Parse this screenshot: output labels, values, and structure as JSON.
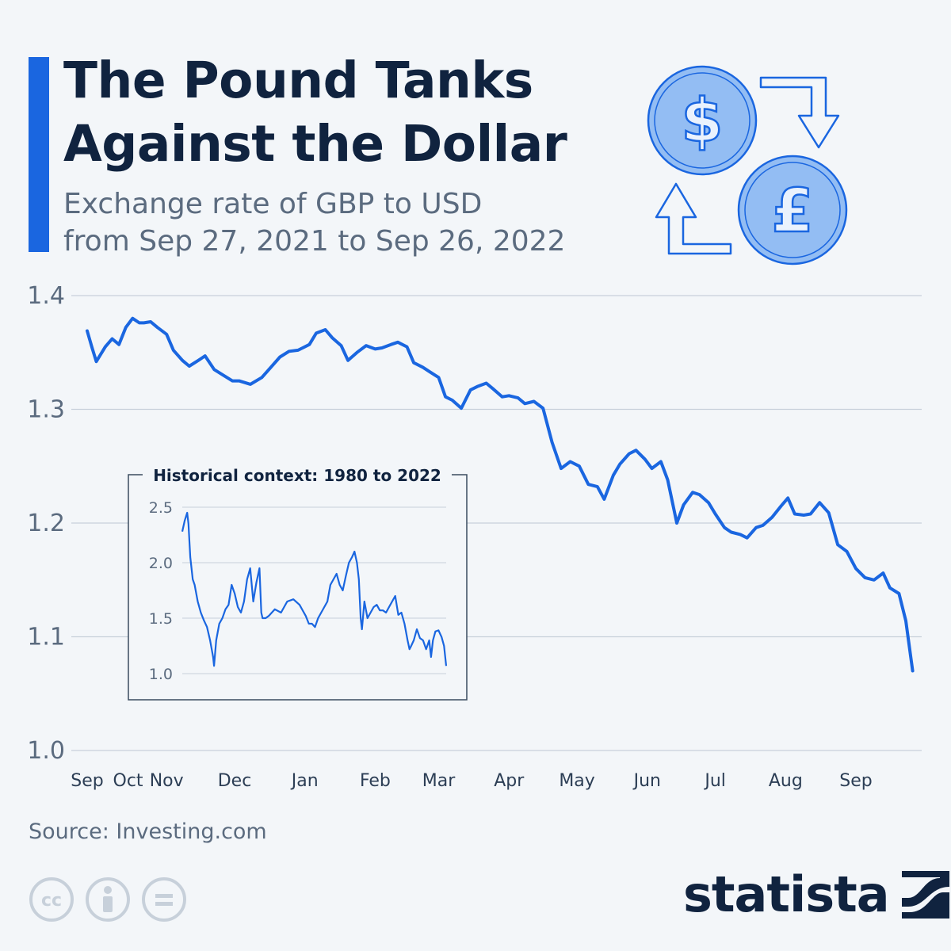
{
  "header": {
    "title_line1": "The Pound Tanks",
    "title_line2": "Against the Dollar",
    "subtitle_line1": "Exchange rate of GBP to USD",
    "subtitle_line2": "from Sep 27, 2021 to Sep 26, 2022",
    "icons": [
      "dollar-coin-icon",
      "pound-coin-icon",
      "exchange-arrows-icon"
    ]
  },
  "colors": {
    "line": "#1a66e0",
    "accent": "#1a66e0",
    "title": "#10233f",
    "text": "#5b6b7f",
    "grid": "#c7d0da",
    "coin_fill": "#93bdf3",
    "background": "#f3f6f9"
  },
  "chart_data": [
    {
      "type": "line",
      "ylim": [
        1.0,
        1.4
      ],
      "yticks": [
        "1.0",
        "1.1",
        "1.2",
        "1.3",
        "1.4"
      ],
      "x_tick_labels": [
        "Sep",
        "Oct",
        "Nov",
        "Dec",
        "Jan",
        "Feb",
        "Mar",
        "Apr",
        "May",
        "Jun",
        "Jul",
        "Aug",
        "Sep"
      ],
      "x_tick_dates": [
        "2021-09-27",
        "2021-10-15",
        "2021-11-01",
        "2021-12-01",
        "2022-01-01",
        "2022-02-01",
        "2022-03-01",
        "2022-04-01",
        "2022-05-01",
        "2022-06-01",
        "2022-07-01",
        "2022-08-01",
        "2022-09-01"
      ],
      "x_range": [
        "2021-09-20",
        "2022-09-30"
      ],
      "grid": true,
      "series": [
        {
          "x": [
            "2021-09-27",
            "2021-09-29",
            "2021-10-01",
            "2021-10-05",
            "2021-10-08",
            "2021-10-11",
            "2021-10-14",
            "2021-10-17",
            "2021-10-20",
            "2021-10-22",
            "2021-10-25",
            "2021-10-28",
            "2021-11-01",
            "2021-11-04",
            "2021-11-08",
            "2021-11-11",
            "2021-11-15",
            "2021-11-18",
            "2021-11-22",
            "2021-11-26",
            "2021-11-30",
            "2021-12-03",
            "2021-12-08",
            "2021-12-13",
            "2021-12-17",
            "2021-12-21",
            "2021-12-25",
            "2021-12-29",
            "2022-01-03",
            "2022-01-06",
            "2022-01-10",
            "2022-01-13",
            "2022-01-17",
            "2022-01-20",
            "2022-01-24",
            "2022-01-28",
            "2022-02-01",
            "2022-02-04",
            "2022-02-08",
            "2022-02-11",
            "2022-02-15",
            "2022-02-18",
            "2022-02-22",
            "2022-02-25",
            "2022-03-01",
            "2022-03-04",
            "2022-03-07",
            "2022-03-11",
            "2022-03-15",
            "2022-03-18",
            "2022-03-22",
            "2022-03-25",
            "2022-03-29",
            "2022-04-01",
            "2022-04-05",
            "2022-04-08",
            "2022-04-12",
            "2022-04-16",
            "2022-04-20",
            "2022-04-24",
            "2022-04-28",
            "2022-05-02",
            "2022-05-06",
            "2022-05-10",
            "2022-05-13",
            "2022-05-17",
            "2022-05-20",
            "2022-05-24",
            "2022-05-27",
            "2022-05-31",
            "2022-06-03",
            "2022-06-07",
            "2022-06-10",
            "2022-06-14",
            "2022-06-17",
            "2022-06-21",
            "2022-06-24",
            "2022-06-28",
            "2022-07-01",
            "2022-07-05",
            "2022-07-08",
            "2022-07-12",
            "2022-07-15",
            "2022-07-19",
            "2022-07-22",
            "2022-07-26",
            "2022-07-30",
            "2022-08-02",
            "2022-08-05",
            "2022-08-09",
            "2022-08-12",
            "2022-08-16",
            "2022-08-20",
            "2022-08-24",
            "2022-08-28",
            "2022-09-01",
            "2022-09-05",
            "2022-09-09",
            "2022-09-13",
            "2022-09-16",
            "2022-09-20",
            "2022-09-23",
            "2022-09-26"
          ],
          "y": [
            1.369,
            1.355,
            1.342,
            1.355,
            1.362,
            1.357,
            1.372,
            1.38,
            1.376,
            1.376,
            1.377,
            1.372,
            1.366,
            1.352,
            1.343,
            1.338,
            1.343,
            1.347,
            1.335,
            1.33,
            1.325,
            1.325,
            1.322,
            1.328,
            1.337,
            1.346,
            1.351,
            1.352,
            1.357,
            1.367,
            1.37,
            1.363,
            1.356,
            1.343,
            1.35,
            1.356,
            1.353,
            1.354,
            1.357,
            1.359,
            1.355,
            1.341,
            1.337,
            1.333,
            1.328,
            1.311,
            1.308,
            1.301,
            1.317,
            1.32,
            1.323,
            1.318,
            1.311,
            1.312,
            1.31,
            1.305,
            1.307,
            1.301,
            1.271,
            1.248,
            1.254,
            1.25,
            1.234,
            1.232,
            1.221,
            1.242,
            1.252,
            1.261,
            1.264,
            1.256,
            1.248,
            1.254,
            1.238,
            1.2,
            1.216,
            1.227,
            1.225,
            1.218,
            1.208,
            1.196,
            1.192,
            1.19,
            1.187,
            1.196,
            1.198,
            1.205,
            1.215,
            1.222,
            1.208,
            1.207,
            1.208,
            1.218,
            1.209,
            1.181,
            1.175,
            1.16,
            1.152,
            1.15,
            1.156,
            1.143,
            1.138,
            1.114,
            1.07
          ]
        }
      ]
    },
    {
      "type": "line",
      "title": "Historical context: 1980 to 2022",
      "ylim": [
        1.0,
        2.5
      ],
      "yticks": [
        "1.0",
        "1.5",
        "2.0",
        "2.5"
      ],
      "x_range": [
        1980,
        2022.75
      ],
      "grid": true,
      "series": [
        {
          "x": [
            1980.0,
            1980.4,
            1980.8,
            1981.0,
            1981.3,
            1981.7,
            1982.0,
            1982.5,
            1983.0,
            1983.5,
            1984.0,
            1984.5,
            1985.0,
            1985.15,
            1985.5,
            1986.0,
            1986.5,
            1987.0,
            1987.5,
            1988.0,
            1988.5,
            1989.0,
            1989.5,
            1990.0,
            1990.5,
            1991.0,
            1991.5,
            1992.0,
            1992.5,
            1992.8,
            1993.0,
            1993.5,
            1994.0,
            1995.0,
            1996.0,
            1997.0,
            1998.0,
            1999.0,
            2000.0,
            2000.5,
            2001.0,
            2001.5,
            2002.0,
            2002.5,
            2003.0,
            2003.5,
            2004.0,
            2004.5,
            2005.0,
            2005.5,
            2006.0,
            2006.5,
            2007.0,
            2007.5,
            2007.9,
            2008.3,
            2008.6,
            2008.9,
            2009.1,
            2009.5,
            2010.0,
            2010.5,
            2011.0,
            2011.5,
            2012.0,
            2012.5,
            2013.0,
            2013.5,
            2014.0,
            2014.5,
            2015.0,
            2015.5,
            2016.0,
            2016.5,
            2016.8,
            2017.0,
            2017.5,
            2018.0,
            2018.5,
            2019.0,
            2019.5,
            2020.0,
            2020.3,
            2020.6,
            2021.0,
            2021.5,
            2022.0,
            2022.4,
            2022.75
          ],
          "y": [
            2.28,
            2.38,
            2.45,
            2.35,
            2.05,
            1.85,
            1.8,
            1.65,
            1.55,
            1.48,
            1.42,
            1.3,
            1.15,
            1.07,
            1.3,
            1.45,
            1.5,
            1.58,
            1.62,
            1.8,
            1.72,
            1.6,
            1.55,
            1.65,
            1.85,
            1.95,
            1.65,
            1.82,
            1.95,
            1.55,
            1.5,
            1.5,
            1.52,
            1.58,
            1.55,
            1.65,
            1.67,
            1.62,
            1.52,
            1.45,
            1.45,
            1.42,
            1.5,
            1.55,
            1.6,
            1.65,
            1.8,
            1.85,
            1.9,
            1.8,
            1.75,
            1.88,
            2.0,
            2.05,
            2.1,
            2.0,
            1.85,
            1.5,
            1.4,
            1.65,
            1.5,
            1.55,
            1.6,
            1.62,
            1.57,
            1.57,
            1.55,
            1.6,
            1.65,
            1.7,
            1.53,
            1.55,
            1.45,
            1.3,
            1.22,
            1.24,
            1.3,
            1.4,
            1.32,
            1.3,
            1.22,
            1.3,
            1.15,
            1.3,
            1.38,
            1.39,
            1.33,
            1.25,
            1.07
          ]
        }
      ]
    }
  ],
  "footer": {
    "source": "Source: Investing.com",
    "license_icons": [
      "creative-commons-icon",
      "attribution-icon",
      "no-derivatives-icon"
    ],
    "brand": "statista"
  }
}
